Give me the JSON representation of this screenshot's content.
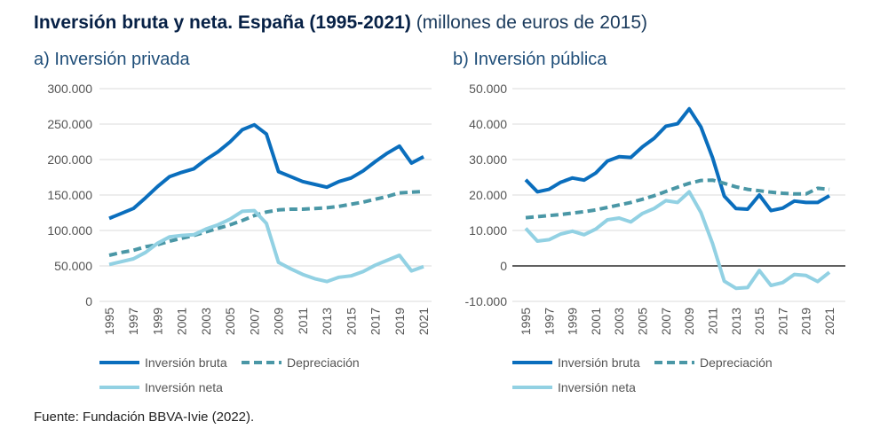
{
  "title": {
    "bold": "Inversión bruta y neta. España (1995-2021)",
    "normal": "(millones de euros de 2015)"
  },
  "source": "Fuente: Fundación BBVA-Ivie (2022).",
  "colors": {
    "bruta": "#0a6ebd",
    "depreciacion": "#4a97a6",
    "neta": "#92d1e3"
  },
  "chart_data": [
    {
      "type": "line",
      "title": "a) Inversión privada",
      "ylim": [
        0,
        300000
      ],
      "yticks": [
        0,
        50000,
        100000,
        150000,
        200000,
        250000,
        300000
      ],
      "ytick_labels": [
        "0",
        "50.000",
        "100.000",
        "150.000",
        "200.000",
        "250.000",
        "300.000"
      ],
      "x": [
        1995,
        1996,
        1997,
        1998,
        1999,
        2000,
        2001,
        2002,
        2003,
        2004,
        2005,
        2006,
        2007,
        2008,
        2009,
        2010,
        2011,
        2012,
        2013,
        2014,
        2015,
        2016,
        2017,
        2018,
        2019,
        2020,
        2021
      ],
      "xtick_labels": [
        "1995",
        "1997",
        "1999",
        "2001",
        "2003",
        "2005",
        "2007",
        "2009",
        "2011",
        "2013",
        "2015",
        "2017",
        "2019",
        "2021"
      ],
      "series": [
        {
          "name": "Inversión bruta",
          "key": "bruta",
          "values": [
            117000,
            124000,
            131000,
            146000,
            162000,
            176000,
            182000,
            187000,
            200000,
            211000,
            225000,
            242000,
            249000,
            236000,
            183000,
            176000,
            169000,
            165000,
            161000,
            169000,
            174000,
            184000,
            197000,
            209000,
            219000,
            195000,
            204000
          ]
        },
        {
          "name": "Depreciación",
          "key": "depreciacion",
          "values": [
            65000,
            69000,
            72000,
            77000,
            80000,
            85000,
            89000,
            93000,
            98000,
            103000,
            108000,
            114000,
            121000,
            126000,
            129000,
            130000,
            130000,
            131000,
            132000,
            134000,
            137000,
            140000,
            144000,
            148000,
            153000,
            154000,
            155000
          ]
        },
        {
          "name": "Inversión neta",
          "key": "neta",
          "values": [
            52000,
            56000,
            60000,
            69000,
            82000,
            91000,
            93000,
            94000,
            102000,
            108000,
            116000,
            127000,
            128000,
            110000,
            55000,
            46000,
            38000,
            32000,
            28000,
            34000,
            36000,
            42000,
            51000,
            58000,
            65000,
            43000,
            49000
          ]
        }
      ]
    },
    {
      "type": "line",
      "title": "b) Inversión pública",
      "ylim": [
        -10000,
        50000
      ],
      "yticks": [
        -10000,
        0,
        10000,
        20000,
        30000,
        40000,
        50000
      ],
      "ytick_labels": [
        "-10.000",
        "0",
        "10.000",
        "20.000",
        "30.000",
        "40.000",
        "50.000"
      ],
      "x": [
        1995,
        1996,
        1997,
        1998,
        1999,
        2000,
        2001,
        2002,
        2003,
        2004,
        2005,
        2006,
        2007,
        2008,
        2009,
        2010,
        2011,
        2012,
        2013,
        2014,
        2015,
        2016,
        2017,
        2018,
        2019,
        2020,
        2021
      ],
      "xtick_labels": [
        "1995",
        "1997",
        "1999",
        "2001",
        "2003",
        "2005",
        "2007",
        "2009",
        "2011",
        "2013",
        "2015",
        "2017",
        "2019",
        "2021"
      ],
      "series": [
        {
          "name": "Inversión bruta",
          "key": "bruta",
          "values": [
            24300,
            20900,
            21600,
            23600,
            24800,
            24200,
            26200,
            29600,
            30800,
            30600,
            33600,
            36000,
            39400,
            40100,
            44300,
            39200,
            30500,
            19700,
            16200,
            16000,
            20000,
            15600,
            16300,
            18300,
            17900,
            17900,
            19800
          ]
        },
        {
          "name": "Depreciación",
          "key": "depreciacion",
          "values": [
            13600,
            13900,
            14200,
            14500,
            14900,
            15300,
            15800,
            16500,
            17200,
            17900,
            18800,
            19800,
            21000,
            22200,
            23300,
            24100,
            24200,
            23300,
            22300,
            21600,
            21200,
            20800,
            20500,
            20300,
            20300,
            21900,
            21600
          ]
        },
        {
          "name": "Inversión neta",
          "key": "neta",
          "values": [
            10600,
            7000,
            7400,
            9000,
            9800,
            8800,
            10400,
            13000,
            13500,
            12400,
            14800,
            16200,
            18400,
            17900,
            20900,
            15100,
            6300,
            -4300,
            -6300,
            -6100,
            -1300,
            -5500,
            -4700,
            -2400,
            -2700,
            -4400,
            -1800
          ]
        }
      ]
    }
  ]
}
